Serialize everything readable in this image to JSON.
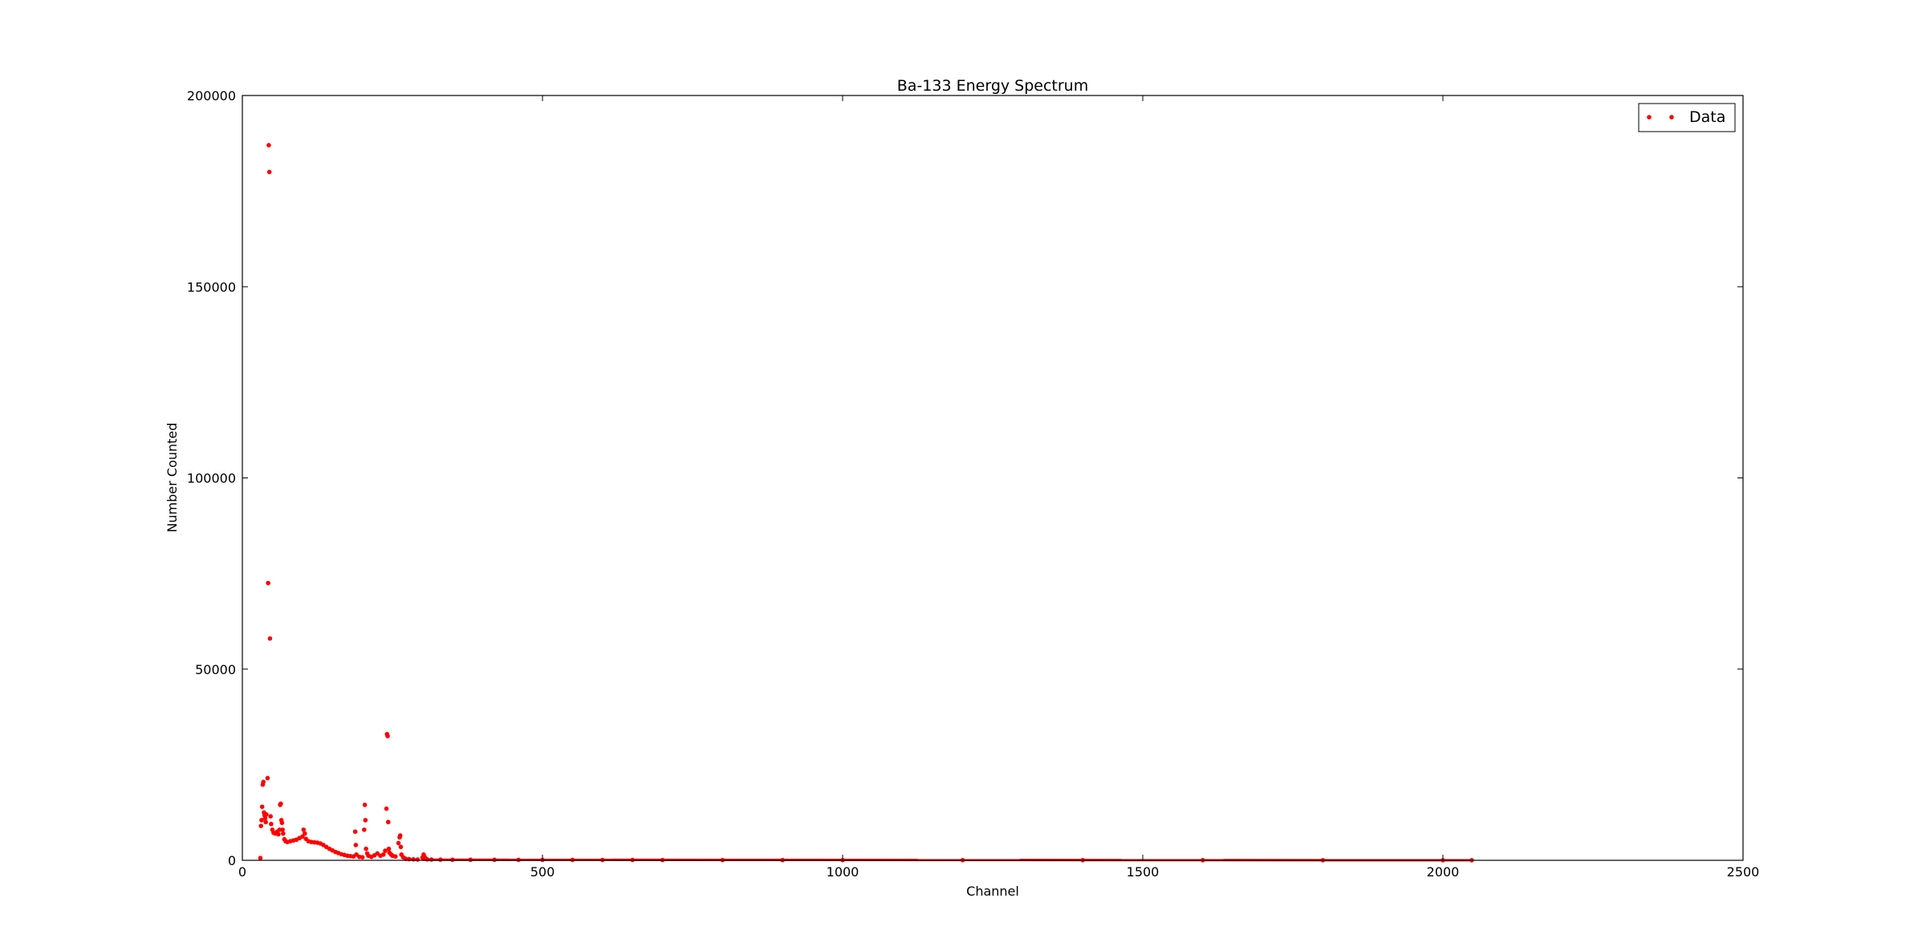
{
  "chart_data": {
    "type": "scatter",
    "title": "Ba-133 Energy Spectrum",
    "xlabel": "Channel",
    "ylabel": "Number Counted",
    "xlim": [
      0,
      2500
    ],
    "ylim": [
      0,
      200000
    ],
    "xticks": [
      0,
      500,
      1000,
      1500,
      2000,
      2500
    ],
    "yticks": [
      0,
      50000,
      100000,
      150000,
      200000
    ],
    "grid": false,
    "legend_position": "top-right",
    "series": [
      {
        "name": "Data",
        "color": "#ff0000",
        "marker": "dot",
        "points": [
          [
            30,
            600
          ],
          [
            31,
            9000
          ],
          [
            32,
            10500
          ],
          [
            33,
            14000
          ],
          [
            34,
            19800
          ],
          [
            35,
            20500
          ],
          [
            36,
            12500
          ],
          [
            37,
            11800
          ],
          [
            38,
            11000
          ],
          [
            39,
            10000
          ],
          [
            40,
            12000
          ],
          [
            42,
            21500
          ],
          [
            43,
            72500
          ],
          [
            44,
            187000
          ],
          [
            45,
            180000
          ],
          [
            46,
            58000
          ],
          [
            47,
            11500
          ],
          [
            48,
            9500
          ],
          [
            50,
            8000
          ],
          [
            52,
            7200
          ],
          [
            55,
            7000
          ],
          [
            58,
            7500
          ],
          [
            60,
            6800
          ],
          [
            62,
            8000
          ],
          [
            63,
            14500
          ],
          [
            64,
            14800
          ],
          [
            65,
            10500
          ],
          [
            66,
            9800
          ],
          [
            67,
            8000
          ],
          [
            68,
            7000
          ],
          [
            70,
            5500
          ],
          [
            72,
            5000
          ],
          [
            75,
            4800
          ],
          [
            80,
            5000
          ],
          [
            85,
            5200
          ],
          [
            90,
            5400
          ],
          [
            95,
            5800
          ],
          [
            100,
            6200
          ],
          [
            102,
            8000
          ],
          [
            104,
            7000
          ],
          [
            106,
            5600
          ],
          [
            110,
            5000
          ],
          [
            115,
            4800
          ],
          [
            120,
            4700
          ],
          [
            125,
            4600
          ],
          [
            130,
            4400
          ],
          [
            135,
            4000
          ],
          [
            140,
            3500
          ],
          [
            145,
            3000
          ],
          [
            150,
            2600
          ],
          [
            155,
            2200
          ],
          [
            160,
            1900
          ],
          [
            165,
            1600
          ],
          [
            170,
            1400
          ],
          [
            175,
            1200
          ],
          [
            180,
            1100
          ],
          [
            185,
            1000
          ],
          [
            188,
            7500
          ],
          [
            189,
            4000
          ],
          [
            190,
            1500
          ],
          [
            195,
            900
          ],
          [
            200,
            800
          ],
          [
            203,
            8000
          ],
          [
            204,
            14500
          ],
          [
            205,
            10500
          ],
          [
            206,
            3000
          ],
          [
            208,
            1800
          ],
          [
            210,
            1200
          ],
          [
            215,
            900
          ],
          [
            220,
            1300
          ],
          [
            225,
            1800
          ],
          [
            230,
            1200
          ],
          [
            235,
            1500
          ],
          [
            238,
            2500
          ],
          [
            240,
            13500
          ],
          [
            241,
            33000
          ],
          [
            242,
            32500
          ],
          [
            243,
            10000
          ],
          [
            244,
            3000
          ],
          [
            245,
            2000
          ],
          [
            248,
            1500
          ],
          [
            250,
            1200
          ],
          [
            255,
            1000
          ],
          [
            260,
            4500
          ],
          [
            262,
            6000
          ],
          [
            263,
            6500
          ],
          [
            264,
            3500
          ],
          [
            265,
            1500
          ],
          [
            268,
            800
          ],
          [
            272,
            400
          ],
          [
            278,
            300
          ],
          [
            285,
            250
          ],
          [
            292,
            200
          ],
          [
            300,
            700
          ],
          [
            302,
            1500
          ],
          [
            304,
            800
          ],
          [
            308,
            250
          ],
          [
            315,
            200
          ],
          [
            330,
            180
          ],
          [
            350,
            160
          ],
          [
            380,
            150
          ],
          [
            420,
            140
          ],
          [
            460,
            130
          ],
          [
            500,
            120
          ],
          [
            550,
            110
          ],
          [
            600,
            100
          ],
          [
            650,
            90
          ],
          [
            700,
            80
          ],
          [
            800,
            70
          ],
          [
            900,
            60
          ],
          [
            1000,
            50
          ],
          [
            1200,
            40
          ],
          [
            1400,
            35
          ],
          [
            1600,
            30
          ],
          [
            1800,
            25
          ],
          [
            2000,
            20
          ],
          [
            2048,
            20
          ]
        ]
      }
    ]
  }
}
